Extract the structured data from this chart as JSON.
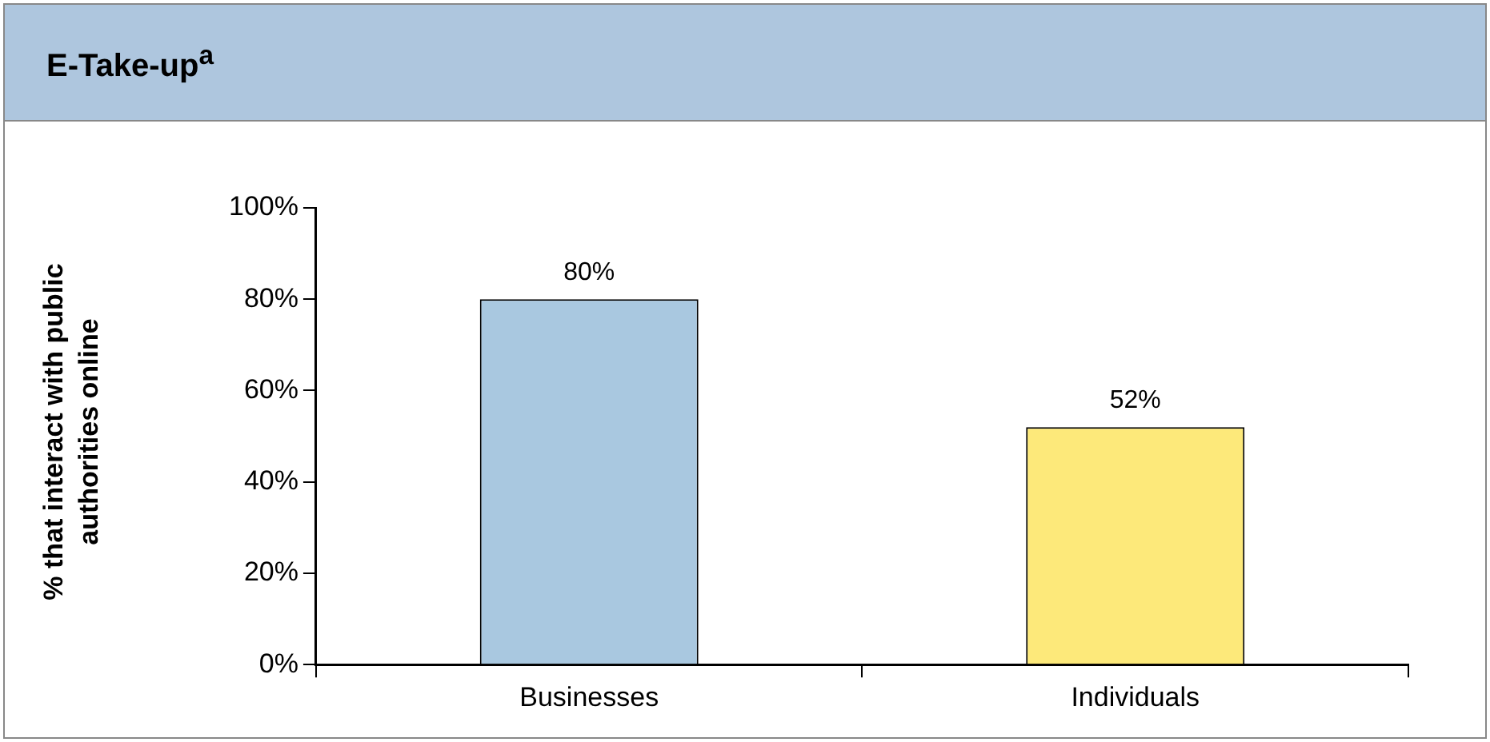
{
  "chart_data": {
    "type": "bar",
    "title": "E-Take-up$^{a}$",
    "ylabel": "% that interact with public authorities online",
    "categories": [
      "Businesses",
      "Individuals"
    ],
    "values": [
      80,
      52
    ],
    "colors": [
      "#a9c8e0",
      "#fde97a"
    ],
    "value_labels": [
      "80%",
      "52%"
    ],
    "ylim": [
      0,
      100
    ],
    "yticks": [
      {
        "value": 0,
        "label": "0%"
      },
      {
        "value": 20,
        "label": "20%"
      },
      {
        "value": 40,
        "label": "40%"
      },
      {
        "value": 60,
        "label": "60%"
      },
      {
        "value": 80,
        "label": "80%"
      },
      {
        "value": 100,
        "label": "100%"
      }
    ],
    "grid": false,
    "legend": false
  }
}
